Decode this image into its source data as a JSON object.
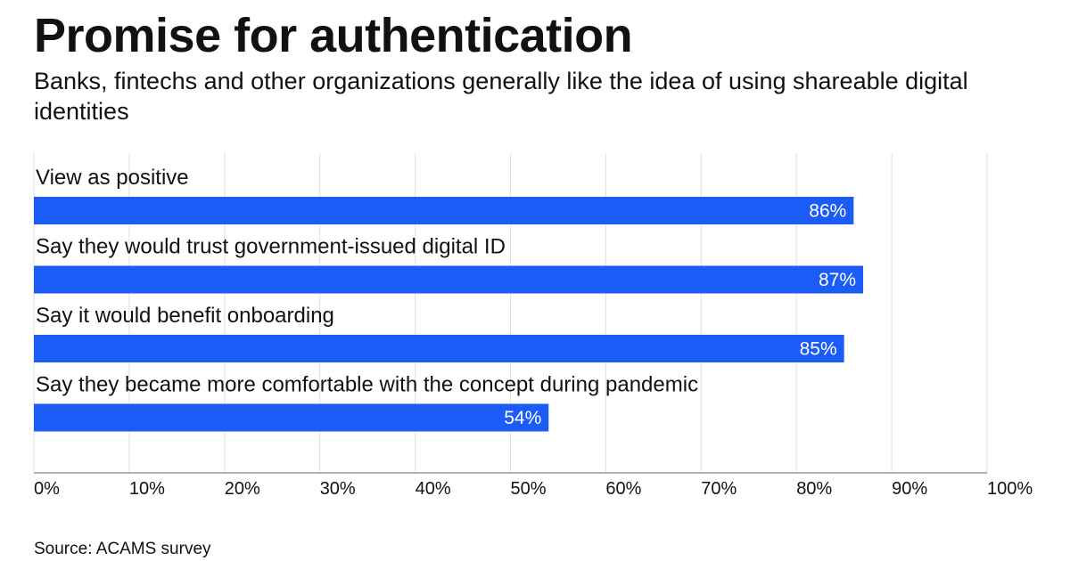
{
  "header": {
    "title": "Promise for authentication",
    "subtitle": "Banks, fintechs and other organizations generally like the idea of using shareable digital identities"
  },
  "footer": {
    "source": "Source: ACAMS survey"
  },
  "colors": {
    "bar": "#1a5cf5",
    "grid": "#e2e2e2",
    "axis": "#999999"
  },
  "chart_data": {
    "type": "bar",
    "orientation": "horizontal",
    "title": "Promise for authentication",
    "subtitle": "Banks, fintechs and other organizations generally like the idea of using shareable digital identities",
    "categories": [
      "View as positive",
      "Say they would trust government-issued digital ID",
      "Say it would benefit onboarding",
      "Say they became more comfortable with the concept during pandemic"
    ],
    "values": [
      86,
      87,
      85,
      54
    ],
    "value_labels": [
      "86%",
      "87%",
      "85%",
      "54%"
    ],
    "xlabel": "",
    "ylabel": "",
    "xlim": [
      0,
      100
    ],
    "xticks": [
      0,
      10,
      20,
      30,
      40,
      50,
      60,
      70,
      80,
      90,
      100
    ],
    "xtick_labels": [
      "0%",
      "10%",
      "20%",
      "30%",
      "40%",
      "50%",
      "60%",
      "70%",
      "80%",
      "90%",
      "100%"
    ],
    "grid": true,
    "legend": "none",
    "source": "Source: ACAMS survey"
  }
}
